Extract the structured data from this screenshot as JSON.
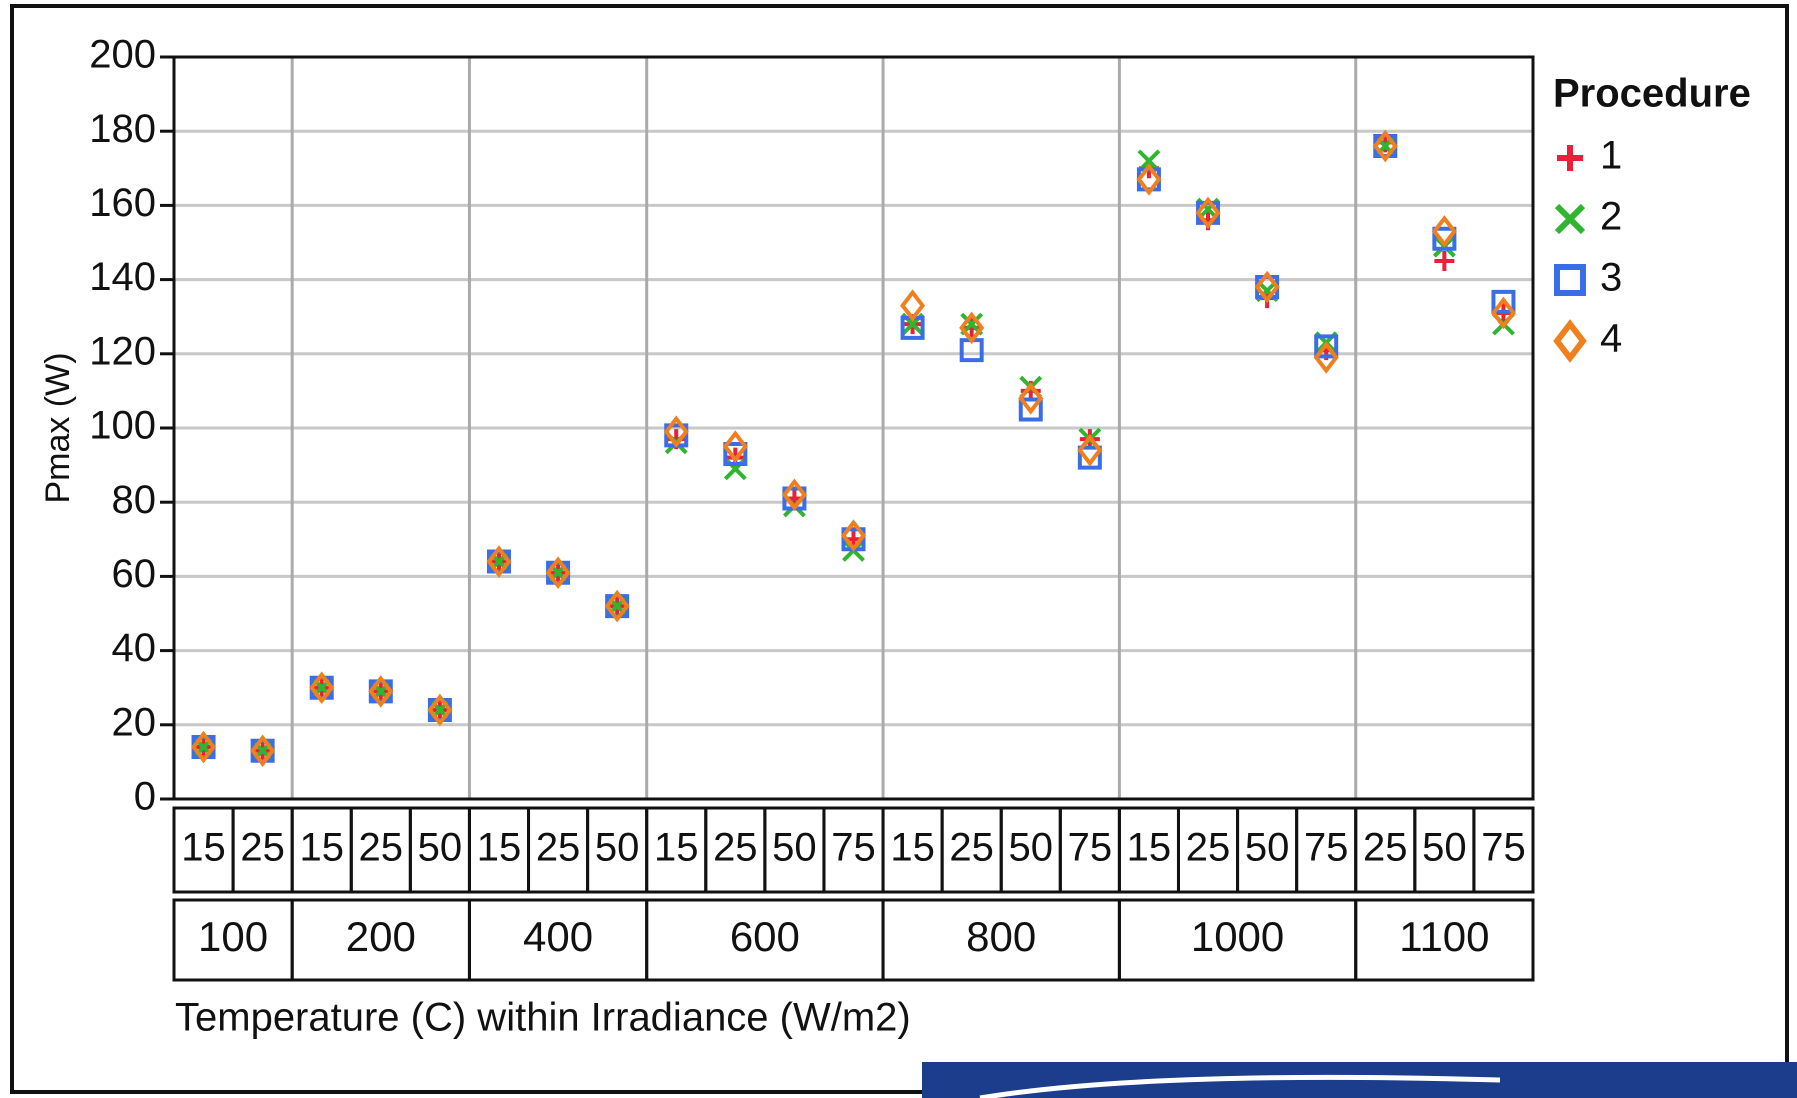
{
  "chart_data": {
    "type": "variability",
    "x_label": "Temperature (C) within Irradiance (W/m2)",
    "y_label": "Pmax (W)",
    "legend_title": "Procedure",
    "groups": [
      {
        "name": "100",
        "categories": [
          "15",
          "25"
        ]
      },
      {
        "name": "200",
        "categories": [
          "15",
          "25",
          "50"
        ]
      },
      {
        "name": "400",
        "categories": [
          "15",
          "25",
          "50"
        ]
      },
      {
        "name": "600",
        "categories": [
          "15",
          "25",
          "50",
          "75"
        ]
      },
      {
        "name": "800",
        "categories": [
          "15",
          "25",
          "50",
          "75"
        ]
      },
      {
        "name": "1000",
        "categories": [
          "15",
          "25",
          "50",
          "75"
        ]
      },
      {
        "name": "1100",
        "categories": [
          "25",
          "50",
          "75"
        ]
      }
    ],
    "series": [
      {
        "name": "1",
        "marker": "plus",
        "color": "#e8213a",
        "values": [
          14,
          13,
          30,
          29,
          24,
          64,
          61,
          52,
          97,
          92,
          81,
          70,
          128,
          127,
          110,
          97,
          170,
          156,
          135,
          121,
          177,
          145,
          131
        ]
      },
      {
        "name": "2",
        "marker": "x",
        "color": "#2fb52f",
        "values": [
          14,
          13,
          30,
          29,
          24,
          64,
          61,
          52,
          96,
          89,
          79,
          67,
          128,
          128,
          111,
          97,
          172,
          159,
          137,
          123,
          176,
          149,
          128
        ]
      },
      {
        "name": "3",
        "marker": "square",
        "color": "#3a6ee8",
        "values": [
          14,
          13,
          30,
          29,
          24,
          64,
          61,
          52,
          98,
          93,
          81,
          70,
          127,
          121,
          105,
          92,
          167,
          158,
          138,
          122,
          176,
          151,
          134
        ]
      },
      {
        "name": "4",
        "marker": "diamond",
        "color": "#f07f1e",
        "values": [
          14,
          13,
          30,
          29,
          24,
          64,
          61,
          52,
          99,
          95,
          82,
          71,
          133,
          127,
          108,
          94,
          167,
          158,
          138,
          119,
          176,
          153,
          131
        ]
      }
    ],
    "ylim": [
      0,
      200
    ],
    "yticks": [
      0,
      20,
      40,
      60,
      80,
      100,
      120,
      140,
      160,
      180,
      200
    ],
    "grid": true
  }
}
